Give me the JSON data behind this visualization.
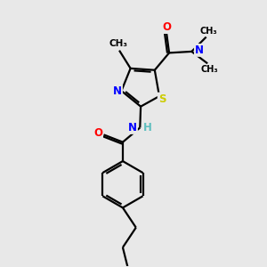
{
  "bg_color": "#e8e8e8",
  "atom_colors": {
    "C": "#000000",
    "N": "#0000ff",
    "O": "#ff0000",
    "S": "#cccc00",
    "H": "#5fbfbf"
  },
  "bond_color": "#000000",
  "bond_width": 1.6,
  "figsize": [
    3.0,
    3.0
  ],
  "dpi": 100,
  "xlim": [
    0,
    10
  ],
  "ylim": [
    0,
    10
  ]
}
